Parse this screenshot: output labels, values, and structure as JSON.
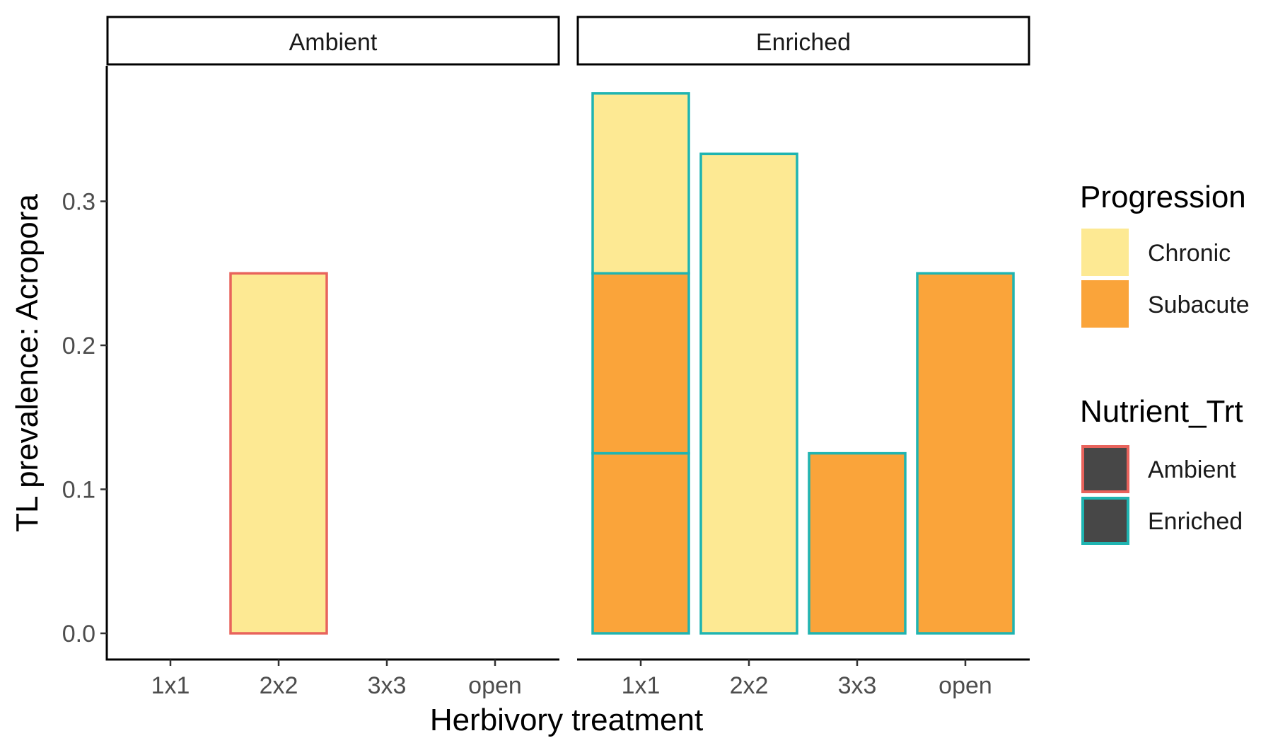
{
  "chart_data": {
    "type": "bar",
    "stacked": true,
    "facets": [
      "Ambient",
      "Enriched"
    ],
    "categories": [
      "1x1",
      "2x2",
      "3x3",
      "open"
    ],
    "xlabel": "Herbivory treatment",
    "ylabel": "TL prevalence: Acropora",
    "ylim": [
      0,
      0.38
    ],
    "yticks": [
      "0.0",
      "0.1",
      "0.2",
      "0.3"
    ],
    "ytick_values": [
      0,
      0.1,
      0.2,
      0.3
    ],
    "grid": false,
    "legend_position": "right",
    "fill_legend": {
      "title": "Progression",
      "items": [
        {
          "label": "Chronic",
          "color": "#FDE993"
        },
        {
          "label": "Subacute",
          "color": "#FAA43A"
        }
      ]
    },
    "outline_legend": {
      "title": "Nutrient_Trt",
      "key_fill": "#474747",
      "items": [
        {
          "label": "Ambient",
          "color": "#E8635C"
        },
        {
          "label": "Enriched",
          "color": "#1FB4B1"
        }
      ]
    },
    "bars": [
      {
        "facet": "Ambient",
        "category": "1x1",
        "segments": [
          {
            "progression": "Subacute",
            "value": 0
          }
        ]
      },
      {
        "facet": "Ambient",
        "category": "2x2",
        "segments": [
          {
            "progression": "Chronic",
            "value": 0.25
          }
        ]
      },
      {
        "facet": "Ambient",
        "category": "3x3",
        "segments": [
          {
            "progression": "Subacute",
            "value": 0
          }
        ]
      },
      {
        "facet": "Ambient",
        "category": "open",
        "segments": [
          {
            "progression": "Subacute",
            "value": 0
          }
        ]
      },
      {
        "facet": "Enriched",
        "category": "1x1",
        "segments": [
          {
            "progression": "Subacute",
            "value": 0.125
          },
          {
            "progression": "Subacute",
            "value": 0.125
          },
          {
            "progression": "Chronic",
            "value": 0.125
          }
        ]
      },
      {
        "facet": "Enriched",
        "category": "2x2",
        "segments": [
          {
            "progression": "Chronic",
            "value": 0.333
          }
        ]
      },
      {
        "facet": "Enriched",
        "category": "3x3",
        "segments": [
          {
            "progression": "Subacute",
            "value": 0.125
          }
        ]
      },
      {
        "facet": "Enriched",
        "category": "open",
        "segments": [
          {
            "progression": "Subacute",
            "value": 0.25
          }
        ]
      }
    ]
  }
}
